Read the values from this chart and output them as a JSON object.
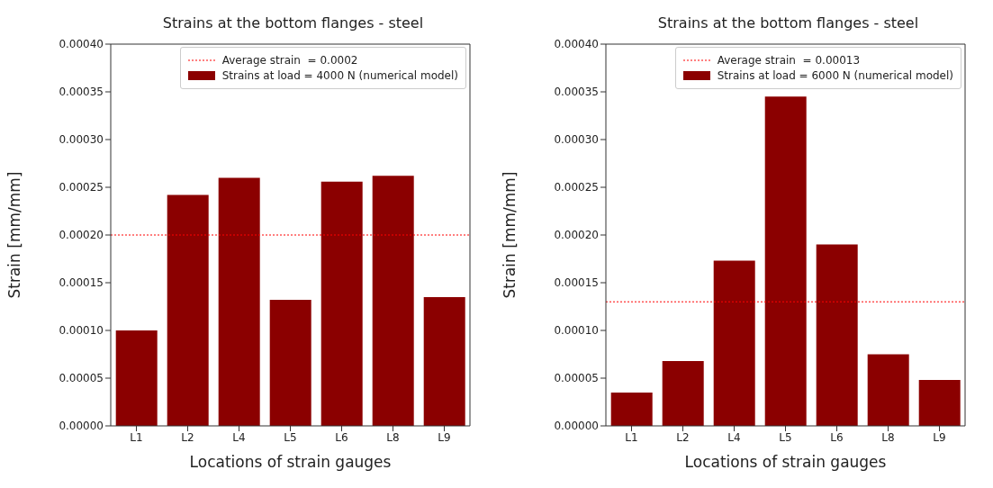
{
  "chart_data": [
    {
      "type": "bar",
      "title": "Strains at the bottom flanges - steel",
      "xlabel": "Locations of strain gauges",
      "ylabel": "Strain [mm/mm]",
      "categories": [
        "L1",
        "L2",
        "L4",
        "L5",
        "L6",
        "L8",
        "L9"
      ],
      "series": [
        {
          "name": "Strains at load = 4000 N (numerical model)",
          "color": "#8b0000",
          "values": [
            0.0001,
            0.000242,
            0.00026,
            0.000132,
            0.000256,
            0.000262,
            0.000135
          ]
        }
      ],
      "ylim": [
        0,
        0.0004
      ],
      "yticks": [
        {
          "value": 0,
          "label": "0.00000"
        },
        {
          "value": 5e-05,
          "label": "0.00005"
        },
        {
          "value": 0.0001,
          "label": "0.00010"
        },
        {
          "value": 0.00015,
          "label": "0.00015"
        },
        {
          "value": 0.0002,
          "label": "0.00020"
        },
        {
          "value": 0.00025,
          "label": "0.00025"
        },
        {
          "value": 0.0003,
          "label": "0.00030"
        },
        {
          "value": 0.00035,
          "label": "0.00035"
        },
        {
          "value": 0.0004,
          "label": "0.00040"
        }
      ],
      "ref_lines": [
        {
          "axis": "y",
          "value": 0.0002,
          "label": "Average strain  = 0.0002",
          "color": "#ff0000",
          "line_style": "dotted"
        }
      ],
      "grid": false,
      "legend": "top right"
    },
    {
      "type": "bar",
      "title": "Strains at the bottom flanges - steel",
      "xlabel": "Locations of strain gauges",
      "ylabel": "Strain [mm/mm]",
      "categories": [
        "L1",
        "L2",
        "L4",
        "L5",
        "L6",
        "L8",
        "L9"
      ],
      "series": [
        {
          "name": "Strains at load = 6000 N (numerical model)",
          "color": "#8b0000",
          "values": [
            3.5e-05,
            6.8e-05,
            0.000173,
            0.000345,
            0.00019,
            7.5e-05,
            4.8e-05
          ]
        }
      ],
      "ylim": [
        0,
        0.0004
      ],
      "yticks": [
        {
          "value": 0,
          "label": "0.00000"
        },
        {
          "value": 5e-05,
          "label": "0.00005"
        },
        {
          "value": 0.0001,
          "label": "0.00010"
        },
        {
          "value": 0.00015,
          "label": "0.00015"
        },
        {
          "value": 0.0002,
          "label": "0.00020"
        },
        {
          "value": 0.00025,
          "label": "0.00025"
        },
        {
          "value": 0.0003,
          "label": "0.00030"
        },
        {
          "value": 0.00035,
          "label": "0.00035"
        },
        {
          "value": 0.0004,
          "label": "0.00040"
        }
      ],
      "ref_lines": [
        {
          "axis": "y",
          "value": 0.00013,
          "label": "Average strain  = 0.00013",
          "color": "#ff0000",
          "line_style": "dotted"
        }
      ],
      "grid": false,
      "legend": "top right"
    }
  ]
}
